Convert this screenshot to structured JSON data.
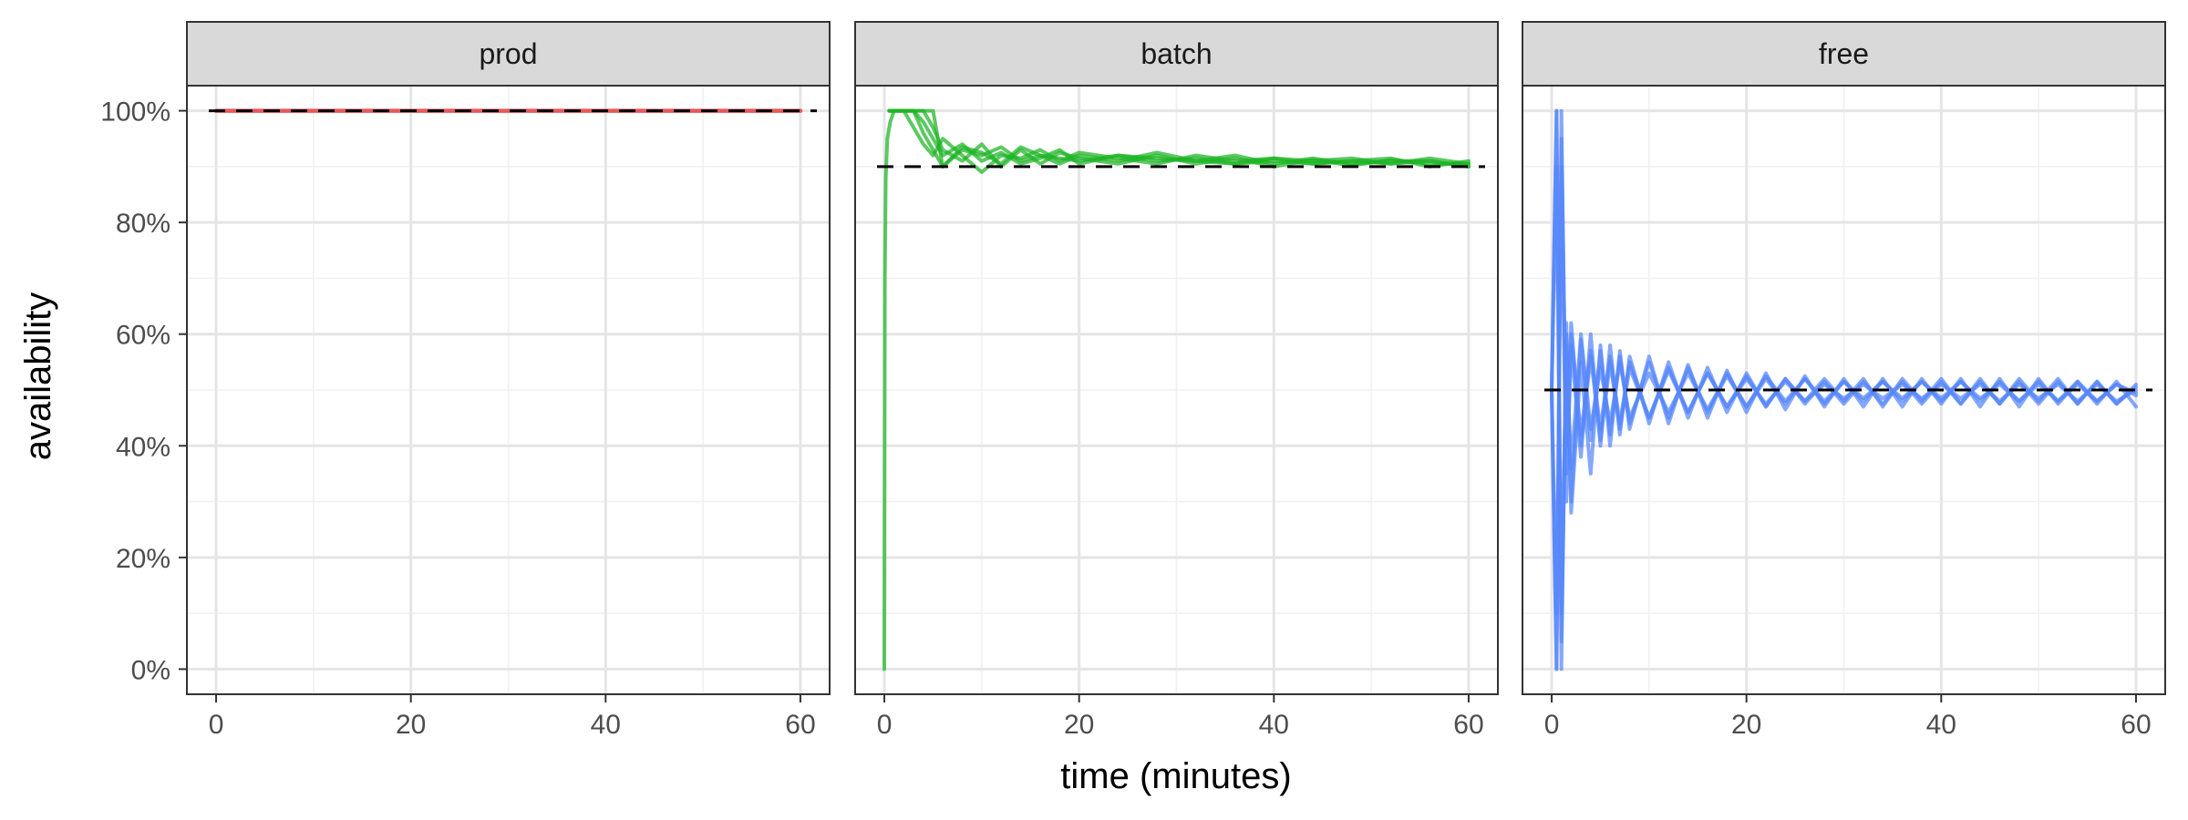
{
  "chart_data": {
    "type": "line",
    "xlabel": "time (minutes)",
    "ylabel": "availability",
    "xlim": [
      -3,
      63
    ],
    "ylim": [
      -0.045,
      1.045
    ],
    "x_ticks": [
      0,
      20,
      40,
      60
    ],
    "x_tick_labels": [
      "0",
      "20",
      "40",
      "60"
    ],
    "y_ticks": [
      0,
      0.2,
      0.4,
      0.6,
      0.8,
      1.0
    ],
    "y_tick_labels": [
      "0%",
      "20%",
      "40%",
      "60%",
      "80%",
      "100%"
    ],
    "grid": true,
    "legend": "none",
    "panels": [
      {
        "label": "prod",
        "color": "#E8585A",
        "target": 1.0,
        "series": [
          {
            "x": [
              0,
              60
            ],
            "y": [
              1.0,
              1.0
            ]
          }
        ]
      },
      {
        "label": "batch",
        "color": "#1DB424",
        "target": 0.9,
        "series": [
          {
            "x": [
              0,
              0.05,
              0.15,
              0.3,
              0.6,
              1,
              2,
              3,
              4,
              5,
              6,
              8,
              10,
              12,
              14,
              16,
              18,
              20,
              24,
              28,
              32,
              36,
              40,
              44,
              48,
              52,
              56,
              60
            ],
            "y": [
              0.0,
              0.7,
              0.88,
              0.95,
              0.98,
              1.0,
              1.0,
              1.0,
              0.96,
              0.93,
              0.9,
              0.93,
              0.92,
              0.935,
              0.91,
              0.92,
              0.915,
              0.91,
              0.92,
              0.91,
              0.915,
              0.905,
              0.91,
              0.905,
              0.91,
              0.905,
              0.91,
              0.9
            ]
          },
          {
            "x": [
              0.5,
              1,
              2,
              3,
              4,
              5,
              6,
              8,
              10,
              12,
              14,
              16,
              18,
              20,
              24,
              28,
              32,
              36,
              40,
              44,
              48,
              52,
              56,
              60
            ],
            "y": [
              1.0,
              1.0,
              1.0,
              1.0,
              1.0,
              0.97,
              0.93,
              0.91,
              0.94,
              0.9,
              0.93,
              0.905,
              0.925,
              0.915,
              0.905,
              0.92,
              0.905,
              0.915,
              0.9,
              0.912,
              0.902,
              0.912,
              0.905,
              0.905
            ]
          },
          {
            "x": [
              0.5,
              1,
              2,
              3,
              4,
              5,
              6,
              8,
              10,
              12,
              14,
              16,
              18,
              20,
              24,
              28,
              32,
              36,
              40,
              44,
              48,
              52,
              56,
              60
            ],
            "y": [
              1.0,
              1.0,
              1.0,
              0.97,
              0.94,
              0.92,
              0.95,
              0.92,
              0.89,
              0.92,
              0.915,
              0.93,
              0.91,
              0.925,
              0.915,
              0.905,
              0.92,
              0.91,
              0.915,
              0.905,
              0.91,
              0.915,
              0.9,
              0.91
            ]
          },
          {
            "x": [
              0.5,
              1,
              2,
              3,
              4,
              5,
              6,
              8,
              10,
              12,
              14,
              16,
              18,
              20,
              24,
              28,
              32,
              36,
              40,
              44,
              48,
              52,
              56,
              60
            ],
            "y": [
              1.0,
              1.0,
              1.0,
              1.0,
              0.98,
              0.95,
              0.92,
              0.94,
              0.91,
              0.925,
              0.905,
              0.915,
              0.93,
              0.905,
              0.92,
              0.915,
              0.91,
              0.905,
              0.915,
              0.91,
              0.915,
              0.905,
              0.915,
              0.905
            ]
          },
          {
            "x": [
              0.5,
              1,
              2,
              3,
              4,
              5,
              6,
              8,
              10,
              12,
              14,
              16,
              18,
              20,
              24,
              28,
              32,
              36,
              40,
              44,
              48,
              52,
              56,
              60
            ],
            "y": [
              1.0,
              1.0,
              1.0,
              1.0,
              1.0,
              1.0,
              0.9,
              0.935,
              0.925,
              0.905,
              0.935,
              0.92,
              0.905,
              0.92,
              0.91,
              0.925,
              0.91,
              0.92,
              0.905,
              0.915,
              0.905,
              0.91,
              0.91,
              0.9
            ]
          }
        ]
      },
      {
        "label": "free",
        "color": "#5687FA",
        "target": 0.5,
        "series": [
          {
            "x": [
              0,
              0.5,
              1,
              1.5,
              2,
              3,
              4,
              5,
              6,
              7,
              8,
              10,
              12,
              14,
              16,
              18,
              20,
              22,
              24,
              26,
              28,
              30,
              32,
              34,
              36,
              38,
              40,
              42,
              44,
              46,
              48,
              50,
              52,
              54,
              56,
              58,
              60
            ],
            "y": [
              0.5,
              0.0,
              1.0,
              0.35,
              0.6,
              0.42,
              0.57,
              0.43,
              0.56,
              0.44,
              0.55,
              0.45,
              0.54,
              0.46,
              0.53,
              0.47,
              0.52,
              0.475,
              0.515,
              0.48,
              0.51,
              0.485,
              0.51,
              0.485,
              0.51,
              0.485,
              0.51,
              0.485,
              0.51,
              0.48,
              0.51,
              0.485,
              0.51,
              0.48,
              0.51,
              0.48,
              0.5
            ]
          },
          {
            "x": [
              0,
              0.5,
              1,
              1.5,
              2,
              3,
              4,
              5,
              6,
              7,
              8,
              10,
              12,
              14,
              16,
              18,
              20,
              22,
              24,
              26,
              28,
              30,
              32,
              34,
              36,
              38,
              40,
              42,
              44,
              46,
              48,
              50,
              52,
              54,
              56,
              58,
              60
            ],
            "y": [
              0.5,
              1.0,
              0.0,
              0.62,
              0.3,
              0.59,
              0.41,
              0.57,
              0.42,
              0.56,
              0.44,
              0.55,
              0.45,
              0.54,
              0.46,
              0.53,
              0.47,
              0.525,
              0.48,
              0.52,
              0.48,
              0.515,
              0.485,
              0.515,
              0.485,
              0.515,
              0.485,
              0.515,
              0.485,
              0.51,
              0.48,
              0.51,
              0.48,
              0.515,
              0.48,
              0.51,
              0.49
            ]
          },
          {
            "x": [
              0,
              0.5,
              1,
              1.5,
              2,
              3,
              4,
              5,
              6,
              7,
              8,
              10,
              12,
              14,
              16,
              18,
              20,
              22,
              24,
              26,
              28,
              30,
              32,
              34,
              36,
              38,
              40,
              42,
              44,
              46,
              48,
              50,
              52,
              54,
              56,
              58,
              60
            ],
            "y": [
              0.5,
              0.1,
              0.9,
              0.3,
              0.58,
              0.38,
              0.6,
              0.4,
              0.58,
              0.42,
              0.56,
              0.44,
              0.55,
              0.45,
              0.54,
              0.46,
              0.53,
              0.47,
              0.52,
              0.48,
              0.52,
              0.48,
              0.52,
              0.47,
              0.52,
              0.48,
              0.52,
              0.475,
              0.52,
              0.475,
              0.52,
              0.48,
              0.52,
              0.475,
              0.515,
              0.475,
              0.51
            ]
          },
          {
            "x": [
              0,
              0.5,
              1,
              1.5,
              2,
              3,
              4,
              5,
              6,
              7,
              8,
              10,
              12,
              14,
              16,
              18,
              20,
              22,
              24,
              26,
              28,
              30,
              32,
              34,
              36,
              38,
              40,
              42,
              44,
              46,
              48,
              50,
              52,
              54,
              56,
              58,
              60
            ],
            "y": [
              0.5,
              0.9,
              0.05,
              0.6,
              0.28,
              0.55,
              0.35,
              0.58,
              0.4,
              0.57,
              0.43,
              0.56,
              0.44,
              0.545,
              0.45,
              0.535,
              0.46,
              0.53,
              0.465,
              0.525,
              0.47,
              0.52,
              0.47,
              0.52,
              0.47,
              0.52,
              0.475,
              0.52,
              0.47,
              0.52,
              0.47,
              0.52,
              0.475,
              0.515,
              0.475,
              0.515,
              0.47
            ]
          },
          {
            "x": [
              0,
              0.5,
              1,
              1.5,
              2,
              3,
              4,
              5,
              6,
              7,
              8,
              10,
              12,
              14,
              16,
              18,
              20,
              22,
              24,
              26,
              28,
              30,
              32,
              34,
              36,
              38,
              40,
              42,
              44,
              46,
              48,
              50,
              52,
              54,
              56,
              58,
              60
            ],
            "y": [
              0.5,
              0.0,
              0.95,
              0.4,
              0.62,
              0.4,
              0.56,
              0.41,
              0.55,
              0.43,
              0.54,
              0.45,
              0.535,
              0.46,
              0.53,
              0.47,
              0.525,
              0.47,
              0.52,
              0.475,
              0.515,
              0.475,
              0.515,
              0.475,
              0.515,
              0.475,
              0.515,
              0.475,
              0.515,
              0.475,
              0.515,
              0.475,
              0.515,
              0.475,
              0.515,
              0.475,
              0.505
            ]
          },
          {
            "x": [
              0,
              0.5,
              1,
              1.5,
              2,
              3,
              4,
              5,
              6,
              7,
              8,
              10,
              12,
              14,
              16,
              18,
              20,
              22,
              24,
              26,
              28,
              30,
              32,
              34,
              36,
              38,
              40,
              42,
              44,
              46,
              48,
              50,
              52,
              54,
              56,
              58,
              60
            ],
            "y": [
              0.5,
              1.0,
              0.1,
              0.58,
              0.36,
              0.6,
              0.43,
              0.54,
              0.44,
              0.55,
              0.45,
              0.53,
              0.46,
              0.53,
              0.465,
              0.525,
              0.47,
              0.52,
              0.475,
              0.52,
              0.475,
              0.515,
              0.48,
              0.515,
              0.48,
              0.515,
              0.48,
              0.515,
              0.48,
              0.515,
              0.48,
              0.515,
              0.48,
              0.51,
              0.48,
              0.51,
              0.495
            ]
          }
        ]
      }
    ]
  }
}
